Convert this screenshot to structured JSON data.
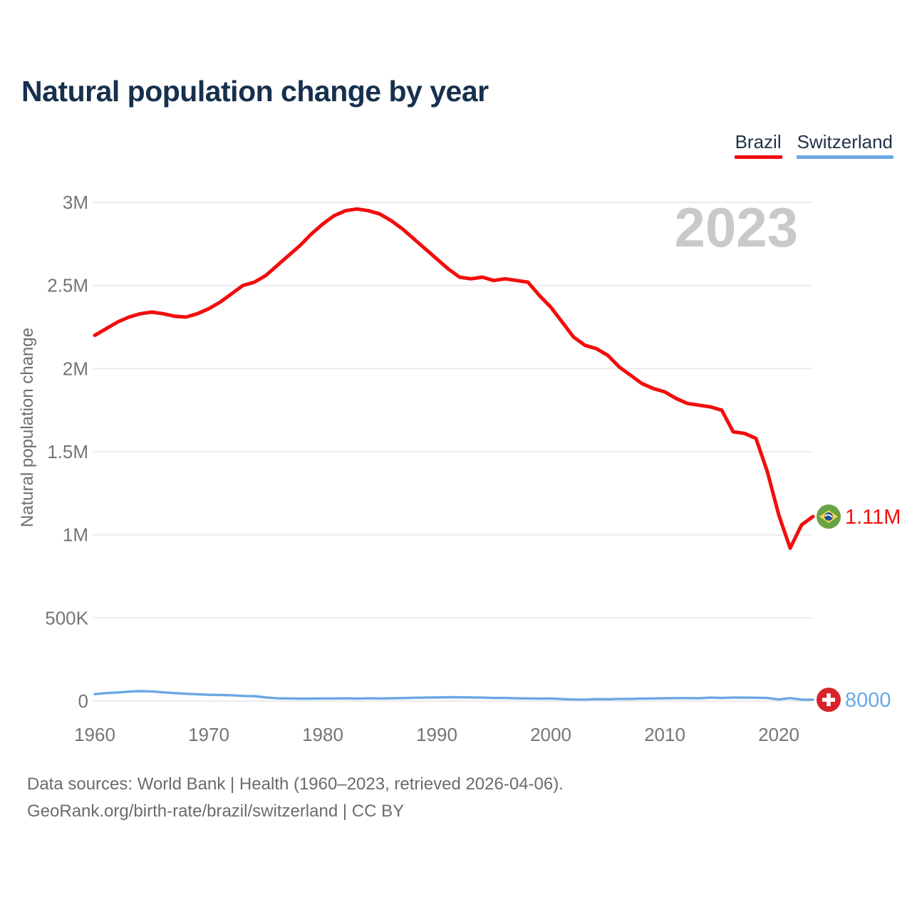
{
  "header": {
    "title": "Natural population change by year"
  },
  "footer": {
    "line1": "Data sources: World Bank | Health (1960–2023, retrieved 2026-04-06).",
    "line2": "GeoRank.org/birth-rate/brazil/switzerland | CC BY"
  },
  "chart_data": {
    "type": "line",
    "title": "Natural population change by year",
    "xlabel": "",
    "ylabel": "Natural population change",
    "watermark": "2023",
    "grid": true,
    "legend_position": "top-right",
    "xlim": [
      1960,
      2023
    ],
    "ylim": [
      0,
      3000000
    ],
    "x_ticks": [
      1960,
      1970,
      1980,
      1990,
      2000,
      2010,
      2020
    ],
    "y_ticks": [
      {
        "value": 0,
        "label": "0"
      },
      {
        "value": 500000,
        "label": "500K"
      },
      {
        "value": 1000000,
        "label": "1M"
      },
      {
        "value": 1500000,
        "label": "1.5M"
      },
      {
        "value": 2000000,
        "label": "2M"
      },
      {
        "value": 2500000,
        "label": "2.5M"
      },
      {
        "value": 3000000,
        "label": "3M"
      }
    ],
    "x": [
      1960,
      1961,
      1962,
      1963,
      1964,
      1965,
      1966,
      1967,
      1968,
      1969,
      1970,
      1971,
      1972,
      1973,
      1974,
      1975,
      1976,
      1977,
      1978,
      1979,
      1980,
      1981,
      1982,
      1983,
      1984,
      1985,
      1986,
      1987,
      1988,
      1989,
      1990,
      1991,
      1992,
      1993,
      1994,
      1995,
      1996,
      1997,
      1998,
      1999,
      2000,
      2001,
      2002,
      2003,
      2004,
      2005,
      2006,
      2007,
      2008,
      2009,
      2010,
      2011,
      2012,
      2013,
      2014,
      2015,
      2016,
      2017,
      2018,
      2019,
      2020,
      2021,
      2022,
      2023
    ],
    "series": [
      {
        "name": "Brazil",
        "color": "#f20d0d",
        "end_label": "1.11M",
        "flag": "brazil",
        "values": [
          2200000,
          2240000,
          2280000,
          2310000,
          2330000,
          2340000,
          2330000,
          2315000,
          2310000,
          2330000,
          2360000,
          2400000,
          2450000,
          2500000,
          2520000,
          2560000,
          2620000,
          2680000,
          2740000,
          2810000,
          2870000,
          2920000,
          2950000,
          2960000,
          2950000,
          2930000,
          2890000,
          2840000,
          2780000,
          2720000,
          2660000,
          2600000,
          2550000,
          2540000,
          2550000,
          2530000,
          2540000,
          2530000,
          2520000,
          2440000,
          2370000,
          2280000,
          2190000,
          2140000,
          2120000,
          2080000,
          2010000,
          1960000,
          1910000,
          1880000,
          1860000,
          1820000,
          1790000,
          1780000,
          1770000,
          1750000,
          1620000,
          1610000,
          1580000,
          1380000,
          1120000,
          920000,
          1060000,
          1110000
        ]
      },
      {
        "name": "Switzerland",
        "color": "#6aa8e4",
        "end_label": "8000",
        "flag": "switzerland",
        "values": [
          42000,
          48000,
          52000,
          57000,
          60000,
          58000,
          53000,
          48000,
          44000,
          41000,
          38000,
          37000,
          35000,
          31000,
          30000,
          22000,
          17000,
          16000,
          15000,
          15000,
          16000,
          16000,
          17000,
          15000,
          17000,
          16000,
          17000,
          18000,
          20000,
          21000,
          22000,
          23000,
          23000,
          22000,
          21000,
          19000,
          19000,
          17000,
          16000,
          15000,
          16000,
          12000,
          10000,
          9000,
          12000,
          11000,
          13000,
          13000,
          15000,
          16000,
          17000,
          18000,
          18000,
          17000,
          21000,
          19000,
          21000,
          21000,
          20000,
          19000,
          10000,
          18000,
          9000,
          8000
        ]
      }
    ]
  }
}
